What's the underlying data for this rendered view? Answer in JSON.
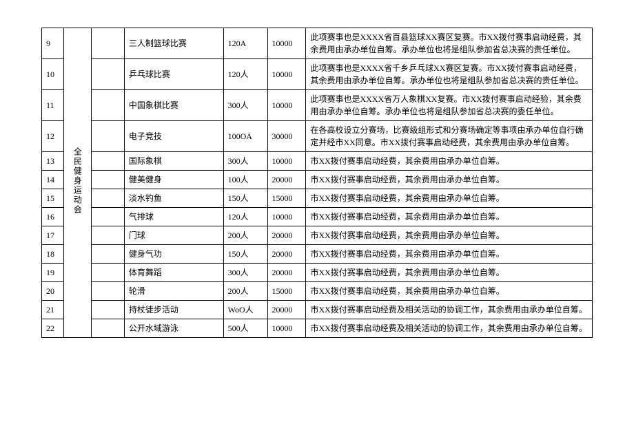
{
  "category": "全民健身运动会",
  "rows": [
    {
      "idx": "9",
      "name": "三人制篮球比赛",
      "people": "120A",
      "amount": "10000",
      "desc": "此项赛事也是XXXX省百县篮球XX赛区复赛。市XX拨付赛事启动经费，其余费用由承办单位自筹。承办单位也将是组队参加省总决赛的责任单位。"
    },
    {
      "idx": "10",
      "name": "乒乓球比赛",
      "people": "120人",
      "amount": "10000",
      "desc": "此项赛事也是XXXX省千乡乒乓球XX赛区复赛。市XX拨付赛事启动经费，其余费用由承办单位自筹。承办单位也将是组队参加省总决赛的责任单位。"
    },
    {
      "idx": "11",
      "name": "中国象棋比赛",
      "people": "300人",
      "amount": "10000",
      "desc": "此项赛事也是XXXX省万人象棋XX复赛。市XX拨付赛事启动经验，其余费用由承办单位自筹。承办单位也将是组队参加省总决赛的委任单位。"
    },
    {
      "idx": "12",
      "name": "电子竞技",
      "people": "100OA",
      "amount": "30000",
      "desc": "在各高校设立分赛场，比赛级组形式和分赛场确定等事项由承办单位自行确定并经市XX同意。市XX拨付赛事启动经费，其余费用由承办单位自筹。"
    },
    {
      "idx": "13",
      "name": "国际象棋",
      "people": "300人",
      "amount": "10000",
      "desc": "市XX拨付赛事启动经费，其余费用由承办单位自筹。"
    },
    {
      "idx": "14",
      "name": "健美健身",
      "people": "100人",
      "amount": "20000",
      "desc": "市XX拨付赛事启动经费，其余费用由承办单位自筹。"
    },
    {
      "idx": "15",
      "name": "淡水钓鱼",
      "people": "150人",
      "amount": "15000",
      "desc": "市XX拨付赛事启动经费，其余费用由承办单位自筹。"
    },
    {
      "idx": "16",
      "name": "气排球",
      "people": "120人",
      "amount": "10000",
      "desc": "市XX拨付赛事启动经费，其余费用由承办单位自筹。"
    },
    {
      "idx": "17",
      "name": "门球",
      "people": "200人",
      "amount": "20000",
      "desc": "市XX拨付赛事启动经费，其余费用由承办单位自筹。"
    },
    {
      "idx": "18",
      "name": "健身气功",
      "people": "150人",
      "amount": "20000",
      "desc": "市XX拨付赛事启动经费，其余费用由承办单位自筹。"
    },
    {
      "idx": "19",
      "name": "体育舞蹈",
      "people": "300人",
      "amount": "20000",
      "desc": "市XX拨付赛事启动经费，其余费用由承办单位自筹。"
    },
    {
      "idx": "20",
      "name": "轮滑",
      "people": "200人",
      "amount": "15000",
      "desc": "市XX拨付赛事启动经费，其余费用由承办单位自筹。"
    },
    {
      "idx": "21",
      "name": "持杖徒步活动",
      "people": "WoO人",
      "amount": "20000",
      "desc": "市XX拨付赛事启动经费及相关活动的协调工作，其余费用由承办单位自筹。"
    },
    {
      "idx": "22",
      "name": "公开水域游泳",
      "people": "500人",
      "amount": "10000",
      "desc": "市XX拨付赛事启动经费及相关活动的协调工作，其余费用由承办单位自筹。"
    }
  ]
}
